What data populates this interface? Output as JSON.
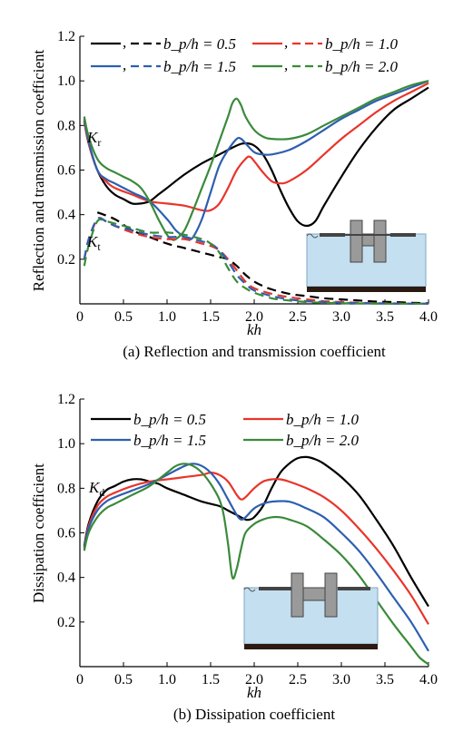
{
  "chart_data": [
    {
      "type": "line",
      "caption": "(a) Reflection and transmission coefficient",
      "xlabel": "kh",
      "ylabel": "Reflection and transmission coefficient",
      "xlim": [
        0,
        4.0
      ],
      "ylim": [
        0,
        1.2
      ],
      "xticks": [
        "0",
        "0.5",
        "1.0",
        "1.5",
        "2.0",
        "2.5",
        "3.0",
        "3.5",
        "4.0"
      ],
      "yticks": [
        "0.2",
        "0.4",
        "0.6",
        "0.8",
        "1.0",
        "1.2"
      ],
      "grid": false,
      "legend_position": "top",
      "legend_entries": [
        {
          "label": "b_p/h = 0.5",
          "color": "#000000"
        },
        {
          "label": "b_p/h = 1.0",
          "color": "#e8352a"
        },
        {
          "label": "b_p/h = 1.5",
          "color": "#2e5fb0"
        },
        {
          "label": "b_p/h = 2.0",
          "color": "#3a8a3a"
        }
      ],
      "annotations": [
        {
          "text": "K",
          "sub": "r",
          "x": 0.1,
          "y": 0.78
        },
        {
          "text": "K",
          "sub": "t",
          "x": 0.1,
          "y": 0.22
        }
      ],
      "series": [
        {
          "name": "b_p/h = 0.5",
          "color": "#000000",
          "dash": false,
          "x": [
            0.05,
            0.1,
            0.2,
            0.3,
            0.4,
            0.5,
            0.6,
            0.7,
            0.8,
            0.9,
            1.0,
            1.2,
            1.4,
            1.6,
            1.8,
            1.9,
            2.0,
            2.1,
            2.2,
            2.3,
            2.4,
            2.5,
            2.6,
            2.7,
            2.8,
            3.0,
            3.2,
            3.4,
            3.6,
            3.8,
            4.0
          ],
          "y": [
            0.82,
            0.72,
            0.6,
            0.53,
            0.49,
            0.47,
            0.45,
            0.45,
            0.46,
            0.49,
            0.52,
            0.58,
            0.63,
            0.67,
            0.71,
            0.72,
            0.71,
            0.67,
            0.6,
            0.51,
            0.43,
            0.37,
            0.35,
            0.37,
            0.44,
            0.57,
            0.69,
            0.79,
            0.87,
            0.92,
            0.97
          ]
        },
        {
          "name": "b_p/h = 1.0",
          "color": "#e8352a",
          "dash": false,
          "x": [
            0.05,
            0.1,
            0.2,
            0.3,
            0.4,
            0.6,
            0.8,
            1.0,
            1.2,
            1.4,
            1.5,
            1.6,
            1.7,
            1.8,
            1.9,
            1.95,
            2.0,
            2.1,
            2.2,
            2.3,
            2.4,
            2.6,
            2.8,
            3.0,
            3.2,
            3.4,
            3.6,
            3.8,
            4.0
          ],
          "y": [
            0.82,
            0.72,
            0.6,
            0.55,
            0.52,
            0.49,
            0.46,
            0.45,
            0.44,
            0.42,
            0.42,
            0.45,
            0.52,
            0.6,
            0.65,
            0.66,
            0.64,
            0.59,
            0.55,
            0.54,
            0.55,
            0.6,
            0.67,
            0.74,
            0.8,
            0.86,
            0.91,
            0.95,
            0.99
          ]
        },
        {
          "name": "b_p/h = 1.5",
          "color": "#2e5fb0",
          "dash": false,
          "x": [
            0.05,
            0.1,
            0.2,
            0.3,
            0.4,
            0.6,
            0.8,
            1.0,
            1.1,
            1.2,
            1.25,
            1.3,
            1.4,
            1.5,
            1.6,
            1.7,
            1.8,
            1.85,
            1.9,
            2.0,
            2.1,
            2.2,
            2.4,
            2.6,
            2.8,
            3.0,
            3.2,
            3.4,
            3.6,
            3.8,
            4.0
          ],
          "y": [
            0.83,
            0.73,
            0.6,
            0.56,
            0.54,
            0.5,
            0.46,
            0.38,
            0.33,
            0.3,
            0.29,
            0.3,
            0.38,
            0.5,
            0.62,
            0.69,
            0.74,
            0.74,
            0.72,
            0.68,
            0.67,
            0.67,
            0.69,
            0.73,
            0.78,
            0.83,
            0.87,
            0.91,
            0.94,
            0.97,
            1.0
          ]
        },
        {
          "name": "b_p/h = 2.0",
          "color": "#3a8a3a",
          "dash": false,
          "x": [
            0.05,
            0.1,
            0.2,
            0.3,
            0.4,
            0.5,
            0.6,
            0.7,
            0.8,
            0.9,
            1.0,
            1.05,
            1.1,
            1.2,
            1.3,
            1.4,
            1.5,
            1.6,
            1.7,
            1.75,
            1.8,
            1.85,
            1.9,
            2.0,
            2.1,
            2.2,
            2.4,
            2.6,
            2.8,
            3.0,
            3.2,
            3.4,
            3.6,
            3.8,
            4.0
          ],
          "y": [
            0.84,
            0.75,
            0.65,
            0.61,
            0.59,
            0.57,
            0.55,
            0.52,
            0.46,
            0.38,
            0.31,
            0.29,
            0.29,
            0.33,
            0.42,
            0.52,
            0.62,
            0.73,
            0.84,
            0.9,
            0.92,
            0.89,
            0.84,
            0.78,
            0.75,
            0.74,
            0.74,
            0.76,
            0.8,
            0.84,
            0.88,
            0.92,
            0.95,
            0.98,
            1.0
          ]
        },
        {
          "name": "b_p/h = 0.5",
          "color": "#000000",
          "dash": true,
          "x": [
            0.2,
            0.4,
            0.6,
            0.8,
            1.0,
            1.2,
            1.4,
            1.6,
            1.7,
            1.8,
            1.9,
            2.0,
            2.1,
            2.2,
            2.4,
            2.6,
            2.8,
            3.0,
            3.2,
            3.4,
            3.6,
            3.8,
            4.0
          ],
          "y": [
            0.41,
            0.38,
            0.33,
            0.3,
            0.27,
            0.25,
            0.23,
            0.21,
            0.2,
            0.17,
            0.13,
            0.1,
            0.08,
            0.065,
            0.045,
            0.035,
            0.025,
            0.02,
            0.015,
            0.01,
            0.008,
            0.005,
            0.003
          ]
        },
        {
          "name": "b_p/h = 1.0",
          "color": "#e8352a",
          "dash": true,
          "x": [
            0.05,
            0.1,
            0.2,
            0.3,
            0.4,
            0.6,
            0.8,
            1.0,
            1.2,
            1.4,
            1.5,
            1.6,
            1.7,
            1.8,
            1.9,
            2.0,
            2.2,
            2.4,
            2.6,
            2.8,
            3.0,
            3.2,
            3.4,
            3.6,
            3.8,
            4.0
          ],
          "y": [
            0.2,
            0.28,
            0.38,
            0.37,
            0.35,
            0.32,
            0.3,
            0.29,
            0.29,
            0.27,
            0.26,
            0.24,
            0.2,
            0.15,
            0.1,
            0.07,
            0.045,
            0.03,
            0.02,
            0.012,
            0.008,
            0.005,
            0.003,
            0.002,
            0.001,
            0.001
          ]
        },
        {
          "name": "b_p/h = 1.5",
          "color": "#2e5fb0",
          "dash": true,
          "x": [
            0.05,
            0.1,
            0.2,
            0.3,
            0.4,
            0.6,
            0.8,
            1.0,
            1.2,
            1.4,
            1.5,
            1.6,
            1.7,
            1.8,
            1.9,
            2.0,
            2.2,
            2.4,
            2.6,
            2.8,
            3.0,
            3.2,
            3.4,
            3.6,
            3.8,
            4.0
          ],
          "y": [
            0.2,
            0.29,
            0.38,
            0.37,
            0.35,
            0.33,
            0.31,
            0.3,
            0.3,
            0.28,
            0.27,
            0.24,
            0.19,
            0.13,
            0.09,
            0.06,
            0.035,
            0.02,
            0.012,
            0.008,
            0.005,
            0.003,
            0.002,
            0.001,
            0.001,
            0.001
          ]
        },
        {
          "name": "b_p/h = 2.0",
          "color": "#3a8a3a",
          "dash": true,
          "x": [
            0.05,
            0.1,
            0.2,
            0.3,
            0.4,
            0.6,
            0.8,
            1.0,
            1.2,
            1.4,
            1.5,
            1.6,
            1.7,
            1.8,
            1.9,
            2.0,
            2.2,
            2.4,
            2.6,
            2.8,
            3.0,
            3.2,
            3.4,
            3.6,
            3.8,
            4.0
          ],
          "y": [
            0.17,
            0.26,
            0.37,
            0.37,
            0.36,
            0.34,
            0.32,
            0.32,
            0.31,
            0.29,
            0.27,
            0.23,
            0.16,
            0.1,
            0.07,
            0.05,
            0.025,
            0.015,
            0.008,
            0.005,
            0.003,
            0.002,
            0.001,
            0.001,
            0.001,
            0.001
          ]
        }
      ]
    },
    {
      "type": "line",
      "caption": "(b) Dissipation coefficient",
      "xlabel": "kh",
      "ylabel": "Dissipation coefficient",
      "xlim": [
        0,
        4.0
      ],
      "ylim": [
        0,
        1.2
      ],
      "xticks": [
        "0",
        "0.5",
        "1.0",
        "1.5",
        "2.0",
        "2.5",
        "3.0",
        "3.5",
        "4.0"
      ],
      "yticks": [
        "0.2",
        "0.4",
        "0.6",
        "0.8",
        "1.0",
        "1.2"
      ],
      "grid": false,
      "legend_position": "top",
      "legend_entries": [
        {
          "label": "b_p/h = 0.5",
          "color": "#000000"
        },
        {
          "label": "b_p/h = 1.0",
          "color": "#e8352a"
        },
        {
          "label": "b_p/h = 1.5",
          "color": "#2e5fb0"
        },
        {
          "label": "b_p/h = 2.0",
          "color": "#3a8a3a"
        }
      ],
      "annotations": [
        {
          "text": "K",
          "sub": "d",
          "x": 0.12,
          "y": 0.83
        }
      ],
      "series": [
        {
          "name": "b_p/h = 0.5",
          "color": "#000000",
          "dash": false,
          "x": [
            0.05,
            0.1,
            0.2,
            0.3,
            0.4,
            0.5,
            0.6,
            0.7,
            0.8,
            0.9,
            1.0,
            1.2,
            1.4,
            1.6,
            1.7,
            1.8,
            1.9,
            1.95,
            2.0,
            2.1,
            2.2,
            2.3,
            2.4,
            2.5,
            2.6,
            2.7,
            2.8,
            3.0,
            3.2,
            3.4,
            3.6,
            3.8,
            4.0
          ],
          "y": [
            0.54,
            0.64,
            0.74,
            0.79,
            0.81,
            0.83,
            0.84,
            0.84,
            0.83,
            0.82,
            0.8,
            0.77,
            0.74,
            0.72,
            0.7,
            0.68,
            0.66,
            0.66,
            0.67,
            0.72,
            0.8,
            0.87,
            0.91,
            0.935,
            0.94,
            0.93,
            0.91,
            0.85,
            0.77,
            0.66,
            0.54,
            0.4,
            0.27
          ]
        },
        {
          "name": "b_p/h = 1.0",
          "color": "#e8352a",
          "dash": false,
          "x": [
            0.05,
            0.1,
            0.2,
            0.3,
            0.4,
            0.6,
            0.8,
            1.0,
            1.2,
            1.4,
            1.5,
            1.6,
            1.7,
            1.8,
            1.85,
            1.9,
            2.0,
            2.1,
            2.2,
            2.3,
            2.4,
            2.6,
            2.8,
            3.0,
            3.2,
            3.4,
            3.6,
            3.8,
            4.0
          ],
          "y": [
            0.53,
            0.63,
            0.72,
            0.76,
            0.78,
            0.81,
            0.83,
            0.84,
            0.85,
            0.86,
            0.87,
            0.86,
            0.83,
            0.77,
            0.75,
            0.76,
            0.8,
            0.83,
            0.84,
            0.84,
            0.83,
            0.8,
            0.76,
            0.7,
            0.62,
            0.53,
            0.43,
            0.32,
            0.19
          ]
        },
        {
          "name": "b_p/h = 1.5",
          "color": "#2e5fb0",
          "dash": false,
          "x": [
            0.05,
            0.1,
            0.2,
            0.3,
            0.4,
            0.6,
            0.8,
            1.0,
            1.2,
            1.3,
            1.4,
            1.5,
            1.6,
            1.7,
            1.8,
            1.85,
            1.9,
            2.0,
            2.1,
            2.2,
            2.4,
            2.6,
            2.8,
            3.0,
            3.2,
            3.4,
            3.6,
            3.8,
            4.0
          ],
          "y": [
            0.53,
            0.62,
            0.7,
            0.74,
            0.76,
            0.79,
            0.82,
            0.86,
            0.9,
            0.91,
            0.9,
            0.87,
            0.82,
            0.75,
            0.68,
            0.66,
            0.67,
            0.71,
            0.73,
            0.74,
            0.74,
            0.71,
            0.67,
            0.6,
            0.52,
            0.42,
            0.31,
            0.2,
            0.07
          ]
        },
        {
          "name": "b_p/h = 2.0",
          "color": "#3a8a3a",
          "dash": false,
          "x": [
            0.05,
            0.1,
            0.2,
            0.3,
            0.4,
            0.6,
            0.8,
            1.0,
            1.1,
            1.2,
            1.3,
            1.4,
            1.5,
            1.6,
            1.65,
            1.7,
            1.75,
            1.8,
            1.85,
            1.9,
            2.0,
            2.1,
            2.2,
            2.3,
            2.4,
            2.6,
            2.8,
            3.0,
            3.2,
            3.4,
            3.6,
            3.8,
            3.9,
            4.0
          ],
          "y": [
            0.52,
            0.6,
            0.67,
            0.71,
            0.73,
            0.77,
            0.81,
            0.87,
            0.9,
            0.91,
            0.9,
            0.87,
            0.82,
            0.75,
            0.68,
            0.55,
            0.4,
            0.44,
            0.53,
            0.6,
            0.64,
            0.66,
            0.67,
            0.67,
            0.66,
            0.63,
            0.57,
            0.5,
            0.41,
            0.3,
            0.19,
            0.09,
            0.04,
            0.01
          ]
        }
      ]
    }
  ]
}
